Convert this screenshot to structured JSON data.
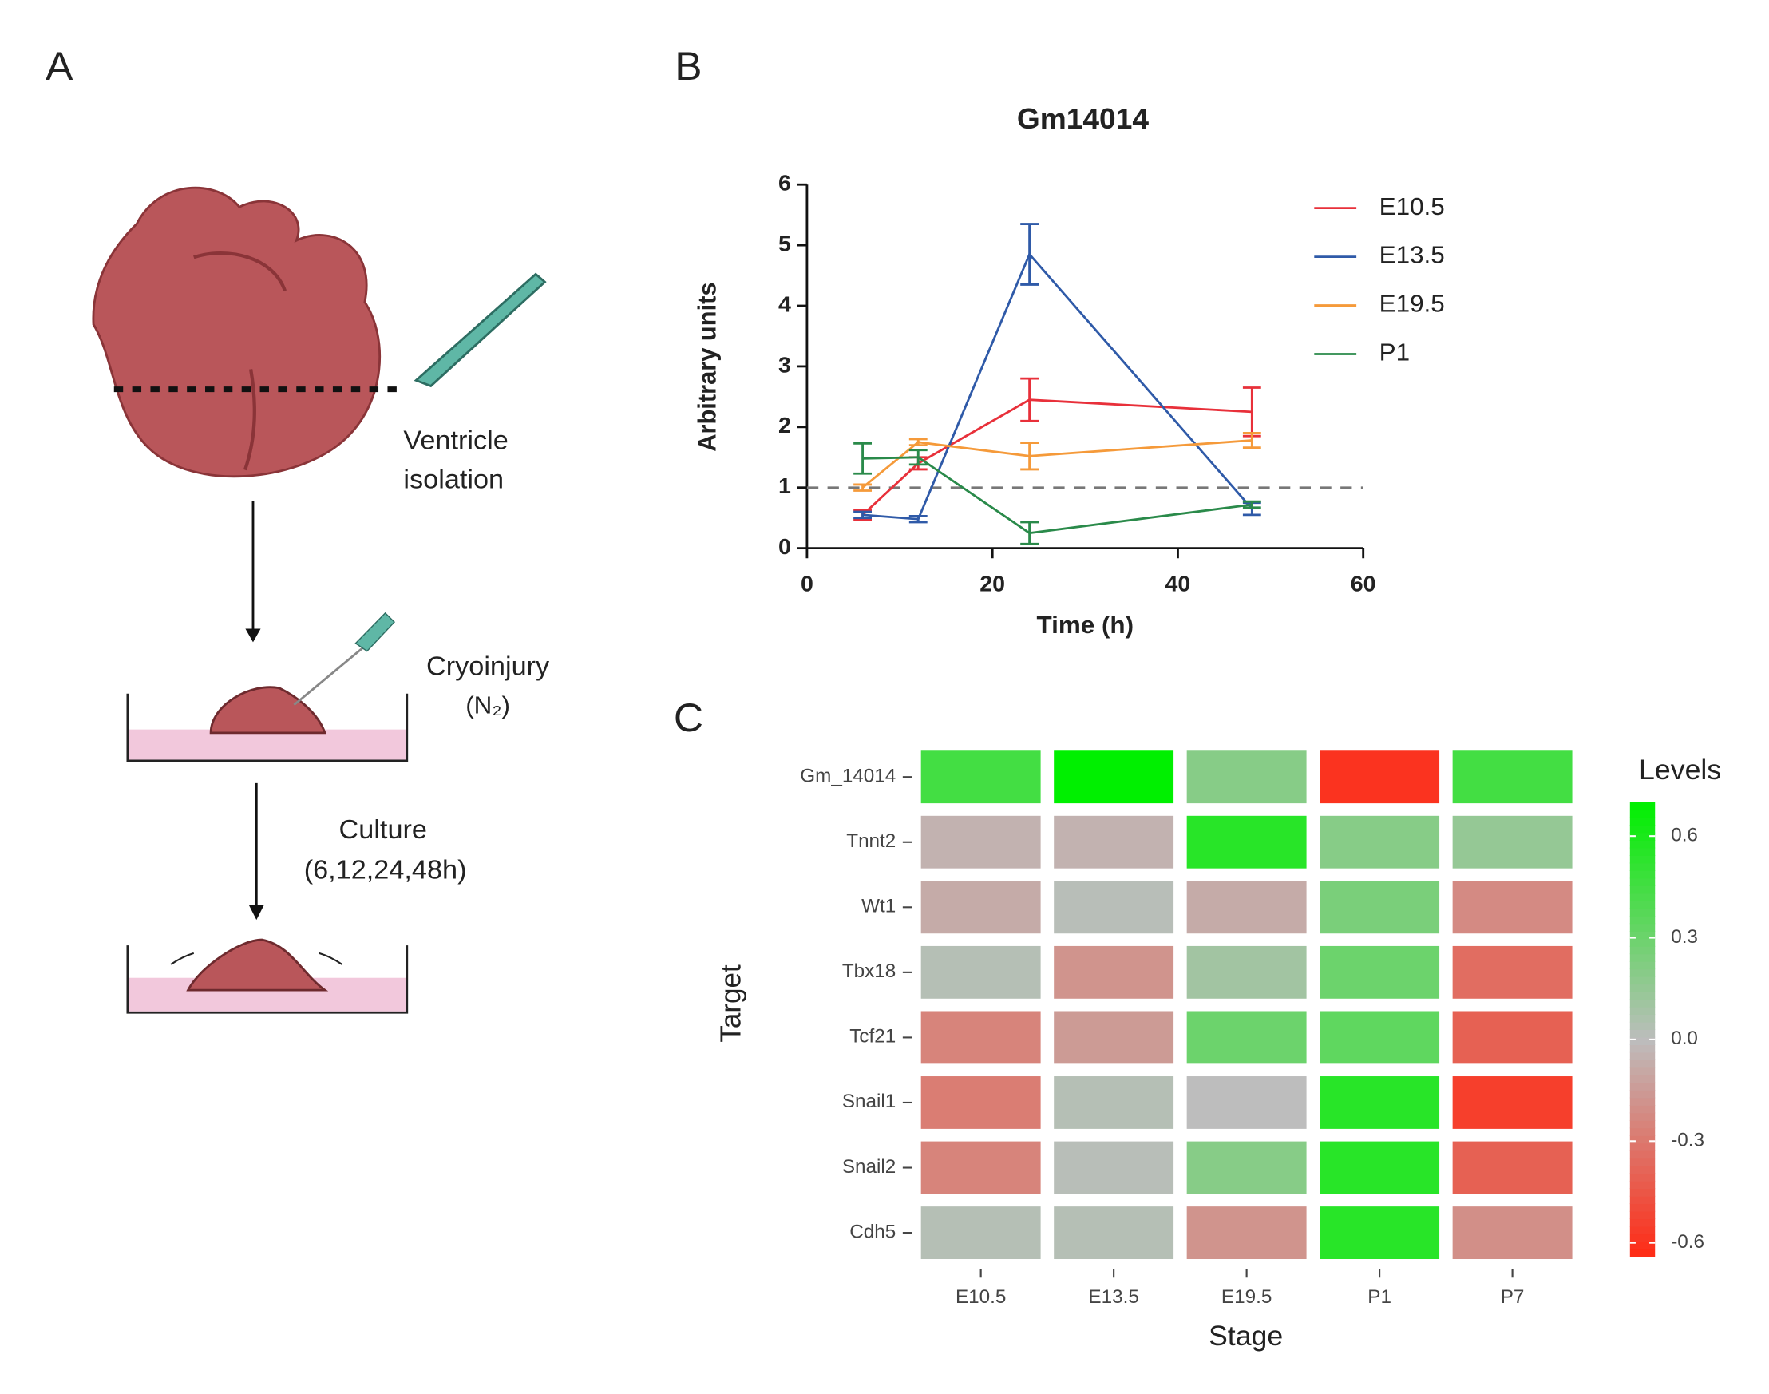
{
  "panel_labels": [
    "A",
    "B",
    "C"
  ],
  "diagram": {
    "step1": [
      "Ventricle",
      "isolation"
    ],
    "step2": [
      "Cryoinjury",
      "(N₂)"
    ],
    "step3": [
      "Culture",
      "(6,12,24,48h)"
    ]
  },
  "chart_data": [
    {
      "type": "line",
      "title": "Gm14014",
      "x_label": "Time (h)",
      "y_label": "Arbitrary units",
      "x": [
        6,
        12,
        24,
        48
      ],
      "series": [
        {
          "name": "E10.5",
          "color": "#e8303a",
          "values": [
            0.55,
            1.4,
            2.45,
            2.25
          ],
          "errors": [
            0.08,
            0.1,
            0.35,
            0.4
          ]
        },
        {
          "name": "E13.5",
          "color": "#2f5aa8",
          "values": [
            0.55,
            0.48,
            4.85,
            0.65
          ],
          "errors": [
            0.05,
            0.05,
            0.5,
            0.1
          ]
        },
        {
          "name": "E19.5",
          "color": "#f59a3a",
          "values": [
            1.0,
            1.75,
            1.52,
            1.78
          ],
          "errors": [
            0.05,
            0.05,
            0.22,
            0.12
          ]
        },
        {
          "name": "P1",
          "color": "#2a8a4a",
          "values": [
            1.48,
            1.5,
            0.25,
            0.72
          ],
          "errors": [
            0.25,
            0.12,
            0.18,
            0.05
          ]
        }
      ],
      "reference_line": 1,
      "xlim": [
        0,
        60
      ],
      "xticks": [
        0,
        20,
        40,
        60
      ],
      "ylim": [
        0,
        6
      ],
      "yticks": [
        0,
        1,
        2,
        3,
        4,
        5,
        6
      ]
    },
    {
      "type": "heatmap",
      "x_label": "Stage",
      "y_label": "Target",
      "categories": [
        "E10.5",
        "E13.5",
        "E19.5",
        "P1",
        "P7"
      ],
      "rows": [
        "Gm_14014",
        "Tnnt2",
        "Wt1",
        "Tbx18",
        "Tcf21",
        "Snail1",
        "Snail2",
        "Cdh5"
      ],
      "values": [
        [
          0.45,
          0.7,
          0.2,
          -0.6,
          0.45
        ],
        [
          -0.05,
          -0.05,
          0.55,
          0.2,
          0.15
        ],
        [
          -0.08,
          0.02,
          -0.08,
          0.25,
          -0.22
        ],
        [
          0.03,
          -0.18,
          0.1,
          0.3,
          -0.35
        ],
        [
          -0.25,
          -0.15,
          0.3,
          0.35,
          -0.4
        ],
        [
          -0.28,
          0.03,
          0.0,
          0.55,
          -0.55
        ],
        [
          -0.25,
          0.02,
          0.2,
          0.55,
          -0.4
        ],
        [
          0.03,
          0.03,
          -0.18,
          0.55,
          -0.2
        ]
      ],
      "colors": [
        "#ff2a14",
        "#bdbdbd",
        "#00f000"
      ],
      "legend_title": "Levels",
      "clim": [
        -0.64,
        0.7
      ],
      "cticks": [
        0.6,
        0.3,
        {
          "value": 0,
          "label": "0.0"
        },
        -0.3,
        -0.6
      ]
    }
  ]
}
